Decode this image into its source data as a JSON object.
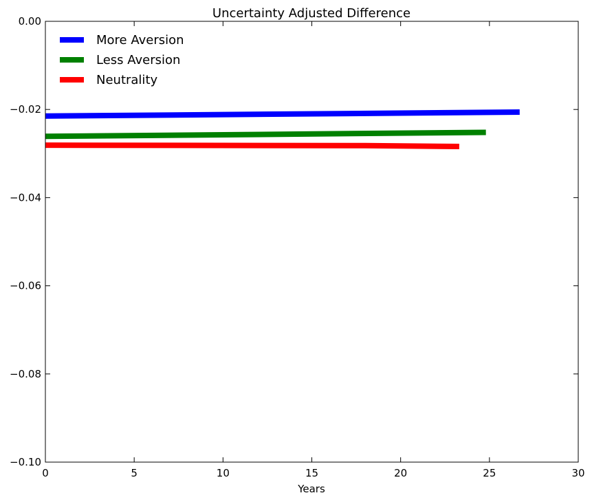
{
  "chart_data": {
    "type": "line",
    "title": "Uncertainty Adjusted Difference",
    "xlabel": "Years",
    "ylabel": "",
    "xlim": [
      0,
      30
    ],
    "ylim": [
      -0.1,
      0.0
    ],
    "xticks": [
      0,
      5,
      10,
      15,
      20,
      25,
      30
    ],
    "xtick_labels": [
      "0",
      "5",
      "10",
      "15",
      "20",
      "25",
      "30"
    ],
    "yticks": [
      0.0,
      -0.02,
      -0.04,
      -0.06,
      -0.08,
      -0.1
    ],
    "ytick_labels": [
      "0.00",
      "−0.02",
      "−0.04",
      "−0.06",
      "−0.08",
      "−0.10"
    ],
    "grid": false,
    "legend_position": "top-left",
    "series": [
      {
        "name": "More Aversion",
        "color": "#0000ff",
        "x": [
          0,
          26.7
        ],
        "y": [
          -0.0215,
          -0.0206
        ]
      },
      {
        "name": "Less Aversion",
        "color": "#008000",
        "x": [
          0,
          24.8
        ],
        "y": [
          -0.0261,
          -0.0252
        ]
      },
      {
        "name": "Neutrality",
        "color": "#ff0000",
        "x": [
          0,
          18.0,
          23.3
        ],
        "y": [
          -0.0281,
          -0.0282,
          -0.0284
        ]
      }
    ]
  }
}
